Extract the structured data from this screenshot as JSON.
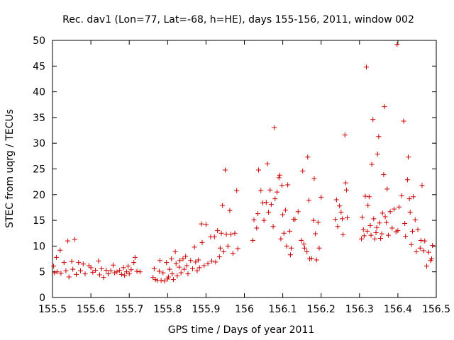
{
  "chart_data": {
    "type": "scatter",
    "title": "Rec. dav1 (Lon=77, Lat=-68, h=HE), days 155-156, 2011, window 002",
    "xlabel": "GPS time / Days of year 2011",
    "ylabel": "STEC from uqrg / TECUs",
    "xlim": [
      155.5,
      156.5
    ],
    "ylim": [
      0,
      50
    ],
    "xticks": [
      "155.5",
      "155.6",
      "155.7",
      "155.8",
      "155.9",
      "156",
      "156.1",
      "156.2",
      "156.3",
      "156.4",
      "156.5"
    ],
    "yticks": [
      "0",
      "5",
      "10",
      "15",
      "20",
      "25",
      "30",
      "35",
      "40",
      "45",
      "50"
    ],
    "grid": false,
    "legend": "none",
    "marker": "plus",
    "color": "#cc0000",
    "series": [
      {
        "points": [
          [
            155.503,
            6.1
          ],
          [
            155.505,
            4.8
          ],
          [
            155.51,
            7.8
          ],
          [
            155.512,
            5.0
          ],
          [
            155.52,
            9.2
          ],
          [
            155.522,
            4.7
          ],
          [
            155.53,
            6.8
          ],
          [
            155.535,
            5.2
          ],
          [
            155.54,
            11.0
          ],
          [
            155.543,
            4.0
          ],
          [
            155.55,
            7.0
          ],
          [
            155.553,
            5.5
          ],
          [
            155.558,
            11.3
          ],
          [
            155.562,
            4.5
          ],
          [
            155.568,
            6.8
          ],
          [
            155.573,
            5.2
          ],
          [
            155.58,
            6.5
          ],
          [
            155.585,
            4.6
          ],
          [
            155.595,
            6.2
          ],
          [
            155.6,
            5.8
          ],
          [
            155.605,
            4.9
          ],
          [
            155.612,
            5.3
          ],
          [
            155.62,
            7.1
          ],
          [
            155.623,
            4.4
          ],
          [
            155.628,
            5.6
          ],
          [
            155.633,
            3.9
          ],
          [
            155.64,
            5.3
          ],
          [
            155.645,
            4.6
          ],
          [
            155.652,
            5.2
          ],
          [
            155.658,
            6.3
          ],
          [
            155.662,
            4.8
          ],
          [
            155.668,
            5.0
          ],
          [
            155.675,
            5.3
          ],
          [
            155.68,
            4.5
          ],
          [
            155.685,
            5.8
          ],
          [
            155.688,
            4.3
          ],
          [
            155.693,
            5.0
          ],
          [
            155.697,
            6.1
          ],
          [
            155.7,
            4.6
          ],
          [
            155.705,
            5.4
          ],
          [
            155.712,
            6.8
          ],
          [
            155.715,
            7.8
          ],
          [
            155.72,
            5.1
          ],
          [
            155.728,
            5.0
          ],
          [
            155.762,
            3.9
          ],
          [
            155.765,
            5.6
          ],
          [
            155.768,
            3.5
          ],
          [
            155.773,
            3.3
          ],
          [
            155.778,
            5.1
          ],
          [
            155.78,
            7.2
          ],
          [
            155.783,
            3.3
          ],
          [
            155.788,
            4.8
          ],
          [
            155.792,
            3.2
          ],
          [
            155.797,
            6.8
          ],
          [
            155.8,
            3.6
          ],
          [
            155.802,
            4.0
          ],
          [
            155.805,
            5.5
          ],
          [
            155.81,
            7.5
          ],
          [
            155.812,
            4.6
          ],
          [
            155.815,
            3.5
          ],
          [
            155.82,
            8.9
          ],
          [
            155.822,
            6.6
          ],
          [
            155.825,
            4.2
          ],
          [
            155.83,
            5.9
          ],
          [
            155.832,
            7.2
          ],
          [
            155.835,
            4.8
          ],
          [
            155.84,
            7.5
          ],
          [
            155.843,
            5.5
          ],
          [
            155.847,
            8.0
          ],
          [
            155.85,
            6.2
          ],
          [
            155.853,
            4.6
          ],
          [
            155.86,
            7.2
          ],
          [
            155.865,
            5.6
          ],
          [
            155.87,
            9.8
          ],
          [
            155.873,
            6.9
          ],
          [
            155.877,
            5.2
          ],
          [
            155.88,
            7.3
          ],
          [
            155.883,
            5.8
          ],
          [
            155.888,
            14.3
          ],
          [
            155.89,
            10.7
          ],
          [
            155.895,
            6.2
          ],
          [
            155.9,
            14.2
          ],
          [
            155.905,
            6.6
          ],
          [
            155.912,
            11.8
          ],
          [
            155.915,
            7.1
          ],
          [
            155.922,
            11.8
          ],
          [
            155.925,
            6.9
          ],
          [
            155.93,
            13.0
          ],
          [
            155.935,
            7.9
          ],
          [
            155.937,
            9.6
          ],
          [
            155.94,
            12.5
          ],
          [
            155.943,
            17.9
          ],
          [
            155.946,
            8.9
          ],
          [
            155.95,
            24.8
          ],
          [
            155.953,
            12.3
          ],
          [
            155.957,
            10.0
          ],
          [
            155.962,
            16.9
          ],
          [
            155.965,
            12.3
          ],
          [
            155.97,
            8.6
          ],
          [
            155.975,
            12.5
          ],
          [
            155.98,
            20.8
          ],
          [
            155.983,
            9.5
          ],
          [
            156.022,
            11.1
          ],
          [
            156.025,
            15.1
          ],
          [
            156.032,
            13.5
          ],
          [
            156.035,
            16.3
          ],
          [
            156.037,
            24.8
          ],
          [
            156.043,
            20.8
          ],
          [
            156.048,
            18.4
          ],
          [
            156.051,
            15.0
          ],
          [
            156.057,
            18.5
          ],
          [
            156.06,
            26.0
          ],
          [
            156.063,
            16.6
          ],
          [
            156.067,
            20.9
          ],
          [
            156.07,
            18.1
          ],
          [
            156.075,
            13.8
          ],
          [
            156.078,
            33.0
          ],
          [
            156.08,
            19.2
          ],
          [
            156.085,
            20.5
          ],
          [
            156.09,
            23.3
          ],
          [
            156.092,
            23.8
          ],
          [
            156.095,
            11.4
          ],
          [
            156.098,
            21.8
          ],
          [
            156.1,
            16.1
          ],
          [
            156.103,
            12.5
          ],
          [
            156.107,
            17.0
          ],
          [
            156.11,
            10.0
          ],
          [
            156.113,
            21.9
          ],
          [
            156.118,
            12.9
          ],
          [
            156.12,
            8.3
          ],
          [
            156.122,
            9.6
          ],
          [
            156.128,
            15.2
          ],
          [
            156.132,
            15.2
          ],
          [
            156.14,
            16.7
          ],
          [
            156.148,
            11.1
          ],
          [
            156.152,
            24.6
          ],
          [
            156.155,
            10.4
          ],
          [
            156.157,
            9.6
          ],
          [
            156.163,
            8.9
          ],
          [
            156.165,
            27.3
          ],
          [
            156.168,
            18.9
          ],
          [
            156.17,
            7.5
          ],
          [
            156.175,
            7.6
          ],
          [
            156.18,
            15.0
          ],
          [
            156.182,
            23.1
          ],
          [
            156.185,
            12.4
          ],
          [
            156.188,
            7.3
          ],
          [
            156.192,
            14.6
          ],
          [
            156.195,
            9.6
          ],
          [
            156.2,
            19.5
          ],
          [
            156.237,
            15.2
          ],
          [
            156.24,
            19.0
          ],
          [
            156.243,
            13.8
          ],
          [
            156.248,
            17.8
          ],
          [
            156.252,
            16.6
          ],
          [
            156.255,
            15.3
          ],
          [
            156.257,
            12.2
          ],
          [
            156.262,
            31.6
          ],
          [
            156.264,
            22.3
          ],
          [
            156.266,
            20.9
          ],
          [
            156.268,
            15.5
          ],
          [
            156.305,
            11.4
          ],
          [
            156.307,
            15.6
          ],
          [
            156.31,
            13.2
          ],
          [
            156.312,
            12.0
          ],
          [
            156.315,
            19.7
          ],
          [
            156.318,
            44.8
          ],
          [
            156.32,
            12.9
          ],
          [
            156.322,
            17.9
          ],
          [
            156.325,
            19.6
          ],
          [
            156.328,
            14.0
          ],
          [
            156.33,
            12.1
          ],
          [
            156.332,
            25.9
          ],
          [
            156.335,
            34.6
          ],
          [
            156.337,
            15.3
          ],
          [
            156.34,
            11.4
          ],
          [
            156.343,
            12.6
          ],
          [
            156.345,
            13.6
          ],
          [
            156.347,
            27.9
          ],
          [
            156.35,
            31.3
          ],
          [
            156.352,
            14.5
          ],
          [
            156.355,
            11.5
          ],
          [
            156.358,
            12.4
          ],
          [
            156.36,
            16.4
          ],
          [
            156.363,
            23.9
          ],
          [
            156.365,
            37.1
          ],
          [
            156.367,
            15.7
          ],
          [
            156.37,
            14.6
          ],
          [
            156.372,
            21.1
          ],
          [
            156.375,
            12.1
          ],
          [
            156.38,
            16.7
          ],
          [
            156.385,
            13.5
          ],
          [
            156.39,
            17.2
          ],
          [
            156.395,
            12.8
          ],
          [
            156.398,
            49.2
          ],
          [
            156.4,
            13.0
          ],
          [
            156.403,
            17.6
          ],
          [
            156.41,
            19.8
          ],
          [
            156.415,
            34.3
          ],
          [
            156.418,
            14.4
          ],
          [
            156.42,
            11.9
          ],
          [
            156.425,
            22.9
          ],
          [
            156.427,
            27.3
          ],
          [
            156.43,
            19.2
          ],
          [
            156.432,
            16.6
          ],
          [
            156.435,
            10.3
          ],
          [
            156.438,
            12.9
          ],
          [
            156.44,
            19.6
          ],
          [
            156.445,
            15.1
          ],
          [
            156.448,
            8.9
          ],
          [
            156.452,
            13.2
          ],
          [
            156.458,
            9.6
          ],
          [
            156.46,
            11.1
          ],
          [
            156.463,
            21.8
          ],
          [
            156.467,
            9.1
          ],
          [
            156.47,
            11.0
          ],
          [
            156.475,
            6.1
          ],
          [
            156.48,
            8.8
          ],
          [
            156.485,
            7.2
          ],
          [
            156.488,
            7.5
          ],
          [
            156.49,
            10.1
          ]
        ]
      }
    ]
  }
}
